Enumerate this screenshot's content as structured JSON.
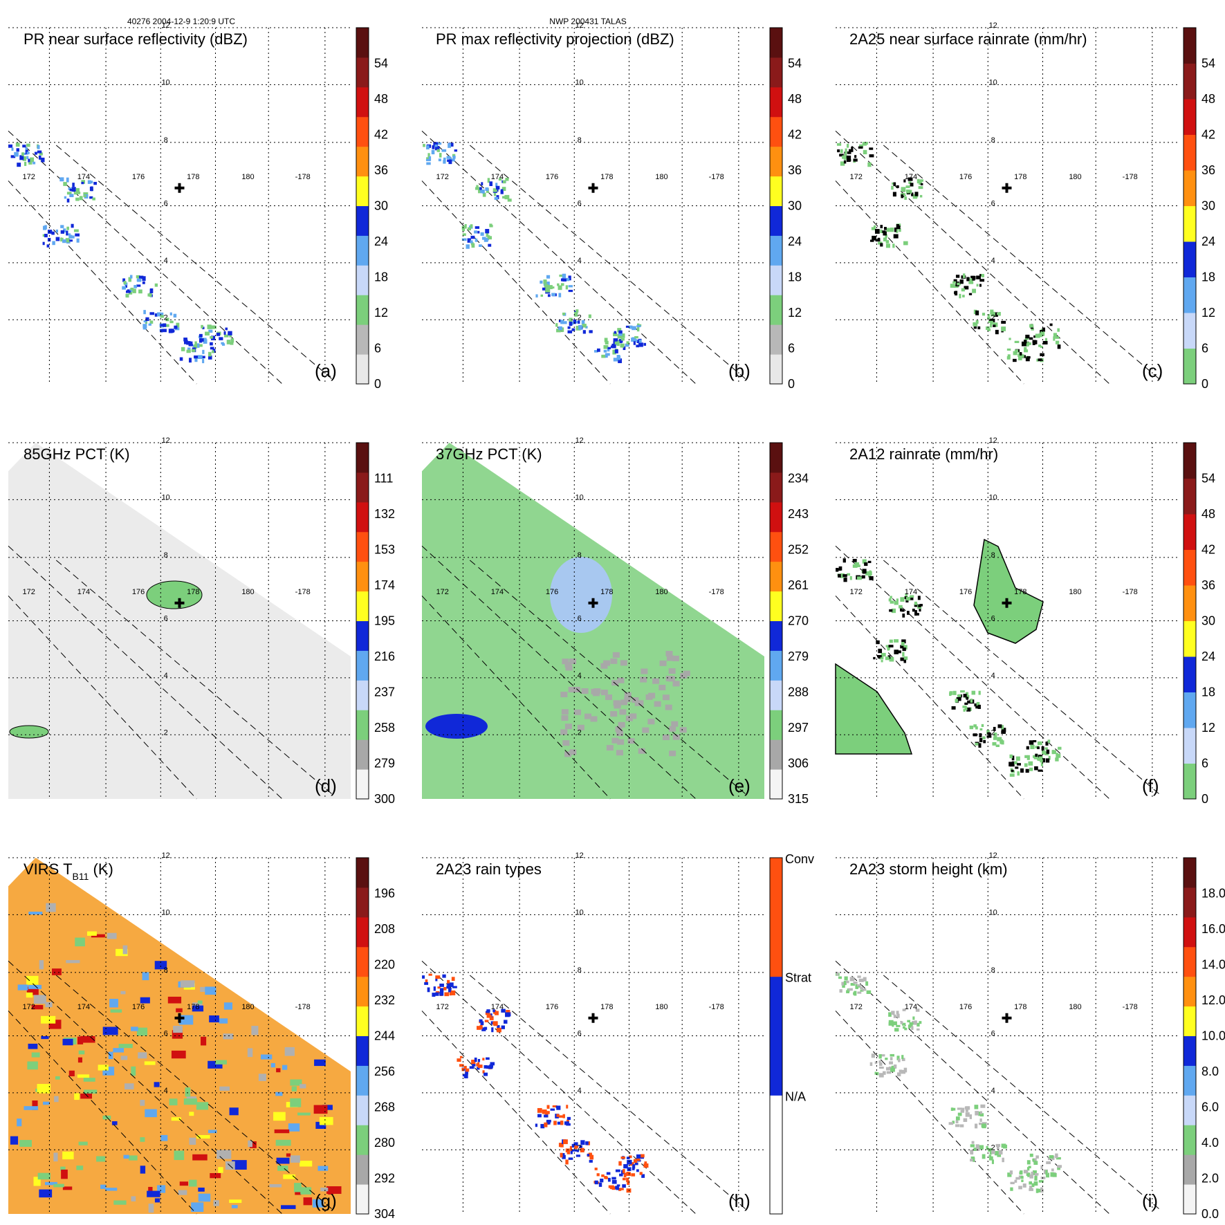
{
  "header": {
    "left": "40276 2004-12-9 1:20:9 UTC",
    "center": "NWP 200431 TALAS"
  },
  "geo_labels": {
    "lats": [
      "12",
      "10",
      "8",
      "6",
      "4",
      "2"
    ],
    "lons": [
      "172",
      "174",
      "176",
      "178",
      "180",
      "-178"
    ]
  },
  "chart_data": [
    {
      "type": "heatmap",
      "panel": "(a)",
      "title": "PR near surface reflectivity (dBZ)",
      "colorbar": {
        "ticks": [
          "54",
          "48",
          "42",
          "36",
          "30",
          "24",
          "18",
          "12",
          "6",
          "0"
        ],
        "colors": [
          "#e8e8e8",
          "#b8b8b8",
          "#7ccf7c",
          "#c8d8f8",
          "#60a8f0",
          "#1028d8",
          "#ffff20",
          "#ff9010",
          "#ff5010",
          "#d01010",
          "#8a1a1a",
          "#5a1010"
        ]
      },
      "swath": "pr",
      "storm_center": true
    },
    {
      "type": "heatmap",
      "panel": "(b)",
      "title": "PR max reflectivity projection (dBZ)",
      "colorbar": {
        "ticks": [
          "54",
          "48",
          "42",
          "36",
          "30",
          "24",
          "18",
          "12",
          "6",
          "0"
        ],
        "colors": [
          "#e8e8e8",
          "#b8b8b8",
          "#7ccf7c",
          "#c8d8f8",
          "#60a8f0",
          "#1028d8",
          "#ffff20",
          "#ff9010",
          "#ff5010",
          "#d01010",
          "#8a1a1a",
          "#5a1010"
        ]
      },
      "swath": "pr",
      "storm_center": true
    },
    {
      "type": "heatmap",
      "panel": "(c)",
      "title": "2A25 near surface rainrate (mm/hr)",
      "colorbar": {
        "ticks": [
          "54",
          "48",
          "42",
          "36",
          "30",
          "24",
          "18",
          "12",
          "6",
          "0"
        ],
        "colors": [
          "#7ccf7c",
          "#c8d8f8",
          "#60a8f0",
          "#1028d8",
          "#ffff20",
          "#ff9010",
          "#ff5010",
          "#d01010",
          "#8a1a1a",
          "#5a1010"
        ]
      },
      "swath": "pr",
      "storm_center": true
    },
    {
      "type": "heatmap",
      "panel": "(d)",
      "title": "85GHz PCT (K)",
      "colorbar": {
        "ticks": [
          "111",
          "132",
          "153",
          "174",
          "195",
          "216",
          "237",
          "258",
          "279",
          "300"
        ],
        "colors": [
          "#f4f4f4",
          "#a8a8a8",
          "#7ccf7c",
          "#c8d8f8",
          "#60a8f0",
          "#1028d8",
          "#ffff20",
          "#ff9010",
          "#ff5010",
          "#d01010",
          "#8a1a1a",
          "#5a1010"
        ]
      },
      "swath": "tmi",
      "storm_center": true
    },
    {
      "type": "heatmap",
      "panel": "(e)",
      "title": "37GHz PCT (K)",
      "colorbar": {
        "ticks": [
          "234",
          "243",
          "252",
          "261",
          "270",
          "279",
          "288",
          "297",
          "306",
          "315"
        ],
        "colors": [
          "#f4f4f4",
          "#a8a8a8",
          "#7ccf7c",
          "#c8d8f8",
          "#60a8f0",
          "#1028d8",
          "#ffff20",
          "#ff9010",
          "#ff5010",
          "#d01010",
          "#8a1a1a",
          "#5a1010"
        ]
      },
      "swath": "tmi",
      "storm_center": true
    },
    {
      "type": "heatmap",
      "panel": "(f)",
      "title": "2A12 rainrate (mm/hr)",
      "colorbar": {
        "ticks": [
          "54",
          "48",
          "42",
          "36",
          "30",
          "24",
          "18",
          "12",
          "6",
          "0"
        ],
        "colors": [
          "#7ccf7c",
          "#c8d8f8",
          "#60a8f0",
          "#1028d8",
          "#ffff20",
          "#ff9010",
          "#ff5010",
          "#d01010",
          "#8a1a1a",
          "#5a1010"
        ]
      },
      "swath": "pr",
      "storm_center": true
    },
    {
      "type": "heatmap",
      "panel": "(g)",
      "title_main": "VIRS T",
      "title_sub": "B11",
      "title_unit": " (K)",
      "colorbar": {
        "ticks": [
          "196",
          "208",
          "220",
          "232",
          "244",
          "256",
          "268",
          "280",
          "292",
          "304"
        ],
        "colors": [
          "#f4f4f4",
          "#a8a8a8",
          "#7ccf7c",
          "#c8d8f8",
          "#60a8f0",
          "#1028d8",
          "#ffff20",
          "#ff9010",
          "#ff5010",
          "#d01010",
          "#8a1a1a",
          "#5a1010"
        ]
      },
      "swath": "tmi",
      "storm_center": true
    },
    {
      "type": "heatmap",
      "panel": "(h)",
      "title": "2A23 rain types",
      "colorbar": {
        "categories": [
          "Conv",
          "Strat",
          "N/A"
        ],
        "colors": [
          "#ffffff",
          "#1028d8",
          "#ff5010"
        ]
      },
      "swath": "pr",
      "storm_center": true
    },
    {
      "type": "heatmap",
      "panel": "(i)",
      "title": "2A23 storm height (km)",
      "colorbar": {
        "ticks": [
          "18.0",
          "16.0",
          "14.0",
          "12.0",
          "10.0",
          "8.0",
          "6.0",
          "4.0",
          "2.0",
          "0.0"
        ],
        "colors": [
          "#f4f4f4",
          "#a8a8a8",
          "#7ccf7c",
          "#c8d8f8",
          "#60a8f0",
          "#1028d8",
          "#ffff20",
          "#ff9010",
          "#ff5010",
          "#d01010",
          "#8a1a1a",
          "#5a1010"
        ]
      },
      "swath": "pr",
      "storm_center": true
    }
  ]
}
